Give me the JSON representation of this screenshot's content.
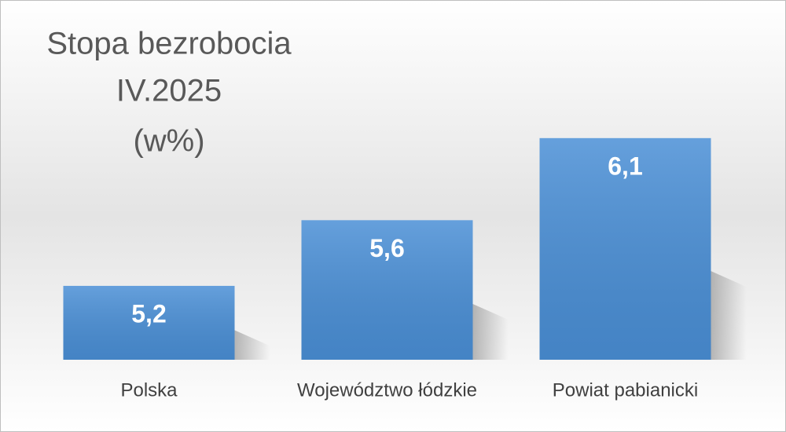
{
  "chart_data": {
    "type": "bar",
    "title": [
      "Stopa bezrobocia",
      "IV.2025",
      "(w%)"
    ],
    "categories": [
      "Polska",
      "Województwo łódzkie",
      "Powiat pabianicki"
    ],
    "values": [
      5.2,
      5.6,
      6.1
    ],
    "value_labels": [
      "5,2",
      "5,6",
      "6,1"
    ],
    "color": "#4a8fd6",
    "ylim": [
      4.75,
      6.75
    ]
  }
}
